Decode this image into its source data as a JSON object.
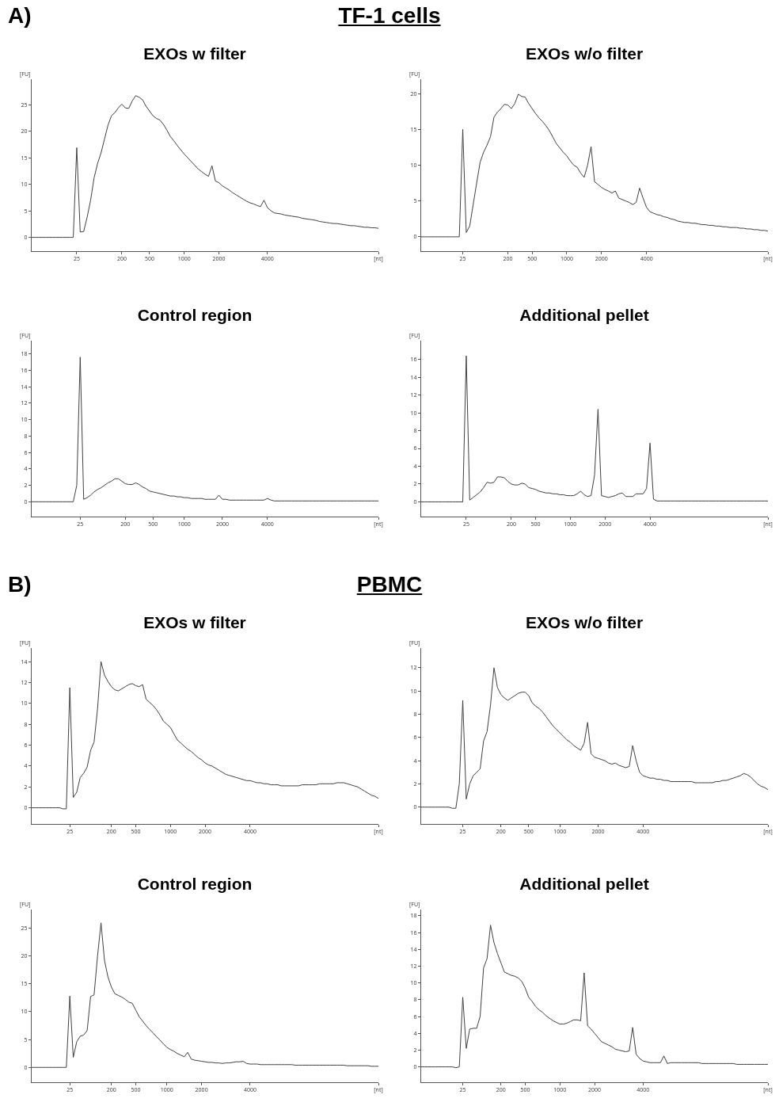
{
  "chart_data": [
    {
      "type": "line",
      "title": "EXOs w filter",
      "annotations": [
        "A)",
        "TF-1 cells"
      ],
      "ylabel": "[FU]",
      "grid": false,
      "marker": "none",
      "line_style": "solid",
      "ylim": [
        -2.6,
        29.8
      ],
      "yticks": [
        0,
        5,
        10,
        15,
        20,
        25
      ],
      "categories": [
        null,
        null,
        null,
        null,
        null,
        null,
        null,
        null,
        null,
        null,
        null,
        null,
        null,
        "25",
        null,
        null,
        null,
        null,
        null,
        null,
        null,
        null,
        null,
        null,
        null,
        null,
        "200",
        null,
        null,
        null,
        null,
        null,
        null,
        null,
        "500",
        null,
        null,
        null,
        null,
        null,
        null,
        null,
        null,
        null,
        "1000",
        null,
        null,
        null,
        null,
        null,
        null,
        null,
        null,
        null,
        "2000",
        null,
        null,
        null,
        null,
        null,
        null,
        null,
        null,
        null,
        null,
        null,
        null,
        null,
        "4000",
        null,
        null,
        null,
        null,
        null,
        null,
        null,
        null,
        null,
        null,
        null,
        null,
        null,
        null,
        null,
        null,
        null,
        null,
        null,
        null,
        null,
        null,
        null,
        null,
        null,
        null,
        null,
        null,
        null,
        null,
        null,
        "[nt]"
      ],
      "series": [
        {
          "color": "#404040",
          "values": [
            0,
            0,
            0,
            0,
            0,
            0,
            0,
            0,
            0,
            0,
            0,
            0,
            0,
            16.9,
            1.0,
            1.1,
            3.8,
            7,
            11.2,
            13.9,
            15.9,
            18.5,
            21.1,
            22.9,
            23.5,
            24.4,
            25.1,
            24.4,
            24.3,
            25.7,
            26.7,
            26.4,
            25.9,
            24.7,
            23.8,
            22.9,
            22.4,
            22.1,
            21.3,
            20.2,
            19,
            18.2,
            17.3,
            16.5,
            15.7,
            15,
            14.3,
            13.6,
            12.9,
            12.4,
            11.9,
            11.5,
            13.5,
            10.6,
            10.3,
            9.7,
            9.3,
            8.9,
            8.4,
            8.0,
            7.6,
            7.2,
            6.8,
            6.5,
            6.3,
            6.0,
            5.8,
            7.0,
            5.6,
            5.0,
            4.6,
            4.5,
            4.4,
            4.2,
            4.1,
            4.0,
            3.9,
            3.8,
            3.6,
            3.5,
            3.4,
            3.3,
            3.2,
            3.0,
            2.9,
            2.8,
            2.7,
            2.6,
            2.6,
            2.5,
            2.4,
            2.3,
            2.2,
            2.2,
            2.1,
            2.0,
            1.9,
            1.9,
            1.8,
            1.8,
            1.7
          ]
        }
      ]
    },
    {
      "type": "line",
      "title": "EXOs w/o filter",
      "ylabel": "[FU]",
      "grid": false,
      "marker": "none",
      "line_style": "solid",
      "ylim": [
        -2,
        22
      ],
      "yticks": [
        0,
        5,
        10,
        15,
        20
      ],
      "categories": [
        null,
        null,
        null,
        null,
        null,
        null,
        null,
        null,
        null,
        null,
        null,
        null,
        "25",
        null,
        null,
        null,
        null,
        null,
        null,
        null,
        null,
        null,
        null,
        null,
        null,
        "200",
        null,
        null,
        null,
        null,
        null,
        null,
        "500",
        null,
        null,
        null,
        null,
        null,
        null,
        null,
        null,
        null,
        "1000",
        null,
        null,
        null,
        null,
        null,
        null,
        null,
        null,
        null,
        "2000",
        null,
        null,
        null,
        null,
        null,
        null,
        null,
        null,
        null,
        null,
        null,
        null,
        "4000",
        null,
        null,
        null,
        null,
        null,
        null,
        null,
        null,
        null,
        null,
        null,
        null,
        null,
        null,
        null,
        null,
        null,
        null,
        null,
        null,
        null,
        null,
        null,
        null,
        null,
        null,
        null,
        null,
        null,
        null,
        null,
        null,
        null,
        null,
        "[nt]"
      ],
      "series": [
        {
          "color": "#404040",
          "values": [
            0,
            0,
            0,
            0,
            0,
            0,
            0,
            0,
            0,
            0,
            0,
            0,
            15,
            0.6,
            1.5,
            4.5,
            7.5,
            10.4,
            11.8,
            12.8,
            14,
            16.7,
            17.4,
            17.9,
            18.5,
            18.4,
            17.9,
            18.6,
            19.9,
            19.6,
            19.5,
            18.6,
            17.9,
            17.2,
            16.6,
            16.1,
            15.5,
            14.8,
            13.9,
            13,
            12.4,
            11.8,
            11.3,
            10.6,
            10,
            9.7,
            8.9,
            8.3,
            10,
            12.6,
            7.7,
            7.3,
            6.9,
            6.6,
            6.4,
            6.1,
            6.4,
            5.4,
            5.2,
            5.0,
            4.8,
            4.5,
            4.8,
            6.8,
            5.4,
            4.1,
            3.5,
            3.3,
            3.1,
            3.0,
            2.8,
            2.7,
            2.5,
            2.4,
            2.2,
            2.1,
            2.0,
            2.0,
            1.9,
            1.9,
            1.8,
            1.7,
            1.7,
            1.6,
            1.6,
            1.5,
            1.5,
            1.4,
            1.4,
            1.3,
            1.3,
            1.3,
            1.2,
            1.2,
            1.1,
            1.1,
            1.0,
            1.0,
            0.9,
            0.9,
            0.8
          ]
        }
      ]
    },
    {
      "type": "line",
      "title": "Control region",
      "ylabel": "[FU]",
      "grid": false,
      "marker": "none",
      "line_style": "solid",
      "ylim": [
        -1.8,
        19.6
      ],
      "yticks": [
        0,
        2,
        4,
        6,
        8,
        10,
        12,
        14,
        16,
        18
      ],
      "categories": [
        null,
        null,
        null,
        null,
        null,
        null,
        null,
        null,
        null,
        null,
        null,
        null,
        null,
        null,
        "25",
        null,
        null,
        null,
        null,
        null,
        null,
        null,
        null,
        null,
        null,
        null,
        null,
        "200",
        null,
        null,
        null,
        null,
        null,
        null,
        null,
        "500",
        null,
        null,
        null,
        null,
        null,
        null,
        null,
        null,
        "1000",
        null,
        null,
        null,
        null,
        null,
        null,
        null,
        null,
        null,
        null,
        "2000",
        null,
        null,
        null,
        null,
        null,
        null,
        null,
        null,
        null,
        null,
        null,
        null,
        "4000",
        null,
        null,
        null,
        null,
        null,
        null,
        null,
        null,
        null,
        null,
        null,
        null,
        null,
        null,
        null,
        null,
        null,
        null,
        null,
        null,
        null,
        null,
        null,
        null,
        null,
        null,
        null,
        null,
        null,
        null,
        null,
        "[nt]"
      ],
      "series": [
        {
          "color": "#404040",
          "values": [
            0,
            0,
            0,
            0,
            0,
            0,
            0,
            0,
            0,
            0,
            0,
            0,
            0,
            2,
            17.6,
            0.3,
            0.5,
            0.8,
            1.2,
            1.5,
            1.7,
            2.0,
            2.3,
            2.5,
            2.8,
            2.8,
            2.5,
            2.2,
            2.1,
            2.1,
            2.3,
            2.1,
            1.8,
            1.6,
            1.3,
            1.2,
            1.1,
            1.0,
            0.9,
            0.8,
            0.7,
            0.7,
            0.6,
            0.6,
            0.5,
            0.5,
            0.4,
            0.4,
            0.4,
            0.4,
            0.3,
            0.3,
            0.3,
            0.3,
            0.8,
            0.3,
            0.3,
            0.2,
            0.2,
            0.2,
            0.2,
            0.2,
            0.2,
            0.2,
            0.2,
            0.2,
            0.2,
            0.2,
            0.4,
            0.2,
            0.1,
            0.1,
            0.1,
            0.1,
            0.1,
            0.1,
            0.1,
            0.1,
            0.1,
            0.1,
            0.1,
            0.1,
            0.1,
            0.1,
            0.1,
            0.1,
            0.1,
            0.1,
            0.1,
            0.1,
            0.1,
            0.1,
            0.1,
            0.1,
            0.1,
            0.1,
            0.1,
            0.1,
            0.1,
            0.1,
            0.1
          ]
        }
      ]
    },
    {
      "type": "line",
      "title": "Additional pellet",
      "ylabel": "[FU]",
      "grid": false,
      "marker": "none",
      "line_style": "solid",
      "ylim": [
        -1.65,
        18.1
      ],
      "yticks": [
        0,
        2,
        4,
        6,
        8,
        10,
        12,
        14,
        16
      ],
      "categories": [
        null,
        null,
        null,
        null,
        null,
        null,
        null,
        null,
        null,
        null,
        null,
        null,
        null,
        "25",
        null,
        null,
        null,
        null,
        null,
        null,
        null,
        null,
        null,
        null,
        null,
        null,
        "200",
        null,
        null,
        null,
        null,
        null,
        null,
        "500",
        null,
        null,
        null,
        null,
        null,
        null,
        null,
        null,
        null,
        "1000",
        null,
        null,
        null,
        null,
        null,
        null,
        null,
        null,
        null,
        "2000",
        null,
        null,
        null,
        null,
        null,
        null,
        null,
        null,
        null,
        null,
        null,
        null,
        "4000",
        null,
        null,
        null,
        null,
        null,
        null,
        null,
        null,
        null,
        null,
        null,
        null,
        null,
        null,
        null,
        null,
        null,
        null,
        null,
        null,
        null,
        null,
        null,
        null,
        null,
        null,
        null,
        null,
        null,
        null,
        null,
        null,
        null,
        "[nt]"
      ],
      "series": [
        {
          "color": "#404040",
          "values": [
            0,
            0,
            0,
            0,
            0,
            0,
            0,
            0,
            0,
            0,
            0,
            0,
            0,
            16.4,
            0.2,
            0.5,
            0.8,
            1.1,
            1.6,
            2.2,
            2.1,
            2.2,
            2.8,
            2.8,
            2.7,
            2.3,
            2.0,
            1.9,
            1.9,
            2.1,
            2.0,
            1.6,
            1.5,
            1.4,
            1.2,
            1.1,
            1.0,
            1.0,
            0.9,
            0.9,
            0.8,
            0.8,
            0.7,
            0.7,
            0.7,
            0.9,
            1.2,
            0.8,
            0.6,
            0.7,
            3.0,
            10.4,
            0.7,
            0.6,
            0.5,
            0.6,
            0.7,
            0.9,
            1.0,
            0.6,
            0.6,
            0.6,
            0.9,
            0.9,
            0.9,
            1.5,
            6.6,
            0.3,
            0.1,
            0.1,
            0.1,
            0.1,
            0.1,
            0.1,
            0.1,
            0.1,
            0.1,
            0.1,
            0.1,
            0.1,
            0.1,
            0.1,
            0.1,
            0.1,
            0.1,
            0.1,
            0.1,
            0.1,
            0.1,
            0.1,
            0.1,
            0.1,
            0.1,
            0.1,
            0.1,
            0.1,
            0.1,
            0.1,
            0.1,
            0.1,
            0.1
          ]
        }
      ]
    },
    {
      "type": "line",
      "title": "EXOs w filter",
      "annotations": [
        "B)",
        "PBMC"
      ],
      "ylabel": "[FU]",
      "grid": false,
      "marker": "none",
      "line_style": "solid",
      "ylim": [
        -1.55,
        15.3
      ],
      "yticks": [
        0,
        2,
        4,
        6,
        8,
        10,
        12,
        14
      ],
      "categories": [
        null,
        null,
        null,
        null,
        null,
        null,
        null,
        null,
        null,
        null,
        null,
        "25",
        null,
        null,
        null,
        null,
        null,
        null,
        null,
        null,
        null,
        null,
        null,
        "200",
        null,
        null,
        null,
        null,
        null,
        null,
        "500",
        null,
        null,
        null,
        null,
        null,
        null,
        null,
        null,
        null,
        "1000",
        null,
        null,
        null,
        null,
        null,
        null,
        null,
        null,
        null,
        "2000",
        null,
        null,
        null,
        null,
        null,
        null,
        null,
        null,
        null,
        null,
        null,
        null,
        "4000",
        null,
        null,
        null,
        null,
        null,
        null,
        null,
        null,
        null,
        null,
        null,
        null,
        null,
        null,
        null,
        null,
        null,
        null,
        null,
        null,
        null,
        null,
        null,
        null,
        null,
        null,
        null,
        null,
        null,
        null,
        null,
        null,
        null,
        null,
        null,
        null,
        "[nt]"
      ],
      "series": [
        {
          "color": "#404040",
          "values": [
            0,
            0,
            0,
            0,
            0,
            0,
            0,
            0,
            0,
            -0.1,
            -0.1,
            11.5,
            1.0,
            1.5,
            2.9,
            3.3,
            3.9,
            5.5,
            6.3,
            9.5,
            14,
            12.7,
            12.1,
            11.6,
            11.3,
            11.2,
            11.4,
            11.6,
            11.8,
            11.9,
            11.7,
            11.6,
            11.8,
            10.4,
            10.1,
            9.8,
            9.4,
            8.9,
            8.3,
            8.0,
            7.7,
            7.1,
            6.5,
            6.2,
            5.9,
            5.6,
            5.4,
            5.1,
            4.8,
            4.6,
            4.3,
            4.1,
            4.0,
            3.8,
            3.6,
            3.4,
            3.2,
            3.1,
            3.0,
            2.9,
            2.8,
            2.7,
            2.6,
            2.6,
            2.5,
            2.4,
            2.4,
            2.3,
            2.3,
            2.2,
            2.2,
            2.2,
            2.1,
            2.1,
            2.1,
            2.1,
            2.1,
            2.1,
            2.2,
            2.2,
            2.2,
            2.2,
            2.2,
            2.3,
            2.3,
            2.3,
            2.3,
            2.3,
            2.4,
            2.4,
            2.4,
            2.3,
            2.2,
            2.1,
            2.0,
            1.8,
            1.6,
            1.4,
            1.2,
            1.1,
            0.9
          ]
        }
      ]
    },
    {
      "type": "line",
      "title": "EXOs w/o filter",
      "ylabel": "[FU]",
      "grid": false,
      "marker": "none",
      "line_style": "solid",
      "ylim": [
        -1.45,
        13.7
      ],
      "yticks": [
        0,
        2,
        4,
        6,
        8,
        10,
        12
      ],
      "categories": [
        null,
        null,
        null,
        null,
        null,
        null,
        null,
        null,
        null,
        null,
        null,
        null,
        "25",
        null,
        null,
        null,
        null,
        null,
        null,
        null,
        null,
        null,
        null,
        "200",
        null,
        null,
        null,
        null,
        null,
        null,
        null,
        "500",
        null,
        null,
        null,
        null,
        null,
        null,
        null,
        null,
        "1000",
        null,
        null,
        null,
        null,
        null,
        null,
        null,
        null,
        null,
        null,
        "2000",
        null,
        null,
        null,
        null,
        null,
        null,
        null,
        null,
        null,
        null,
        null,
        null,
        "4000",
        null,
        null,
        null,
        null,
        null,
        null,
        null,
        null,
        null,
        null,
        null,
        null,
        null,
        null,
        null,
        null,
        null,
        null,
        null,
        null,
        null,
        null,
        null,
        null,
        null,
        null,
        null,
        null,
        null,
        null,
        null,
        null,
        null,
        null,
        null,
        "[nt]"
      ],
      "series": [
        {
          "color": "#404040",
          "values": [
            0,
            0,
            0,
            0,
            0,
            0,
            0,
            0,
            0,
            -0.1,
            -0.1,
            2,
            9.2,
            0.7,
            2.0,
            2.7,
            3.0,
            3.3,
            5.7,
            6.5,
            8.8,
            12.0,
            10.3,
            9.7,
            9.4,
            9.2,
            9.4,
            9.6,
            9.8,
            9.9,
            9.9,
            9.6,
            9.0,
            8.7,
            8.5,
            8.2,
            7.8,
            7.4,
            7.0,
            6.7,
            6.4,
            6.1,
            5.8,
            5.6,
            5.3,
            5.1,
            4.9,
            5.5,
            7.3,
            4.6,
            4.3,
            4.2,
            4.1,
            4.0,
            3.8,
            3.7,
            3.8,
            3.6,
            3.5,
            3.4,
            3.5,
            5.3,
            4.0,
            3.0,
            2.7,
            2.6,
            2.5,
            2.5,
            2.4,
            2.4,
            2.3,
            2.3,
            2.2,
            2.2,
            2.2,
            2.2,
            2.2,
            2.2,
            2.2,
            2.1,
            2.1,
            2.1,
            2.1,
            2.1,
            2.1,
            2.2,
            2.2,
            2.3,
            2.3,
            2.4,
            2.5,
            2.6,
            2.7,
            2.9,
            2.8,
            2.6,
            2.3,
            2.0,
            1.8,
            1.7,
            1.5
          ]
        }
      ]
    },
    {
      "type": "line",
      "title": "Control region",
      "ylabel": "[FU]",
      "grid": false,
      "marker": "none",
      "line_style": "solid",
      "ylim": [
        -2.66,
        28.3
      ],
      "yticks": [
        0,
        5,
        10,
        15,
        20,
        25
      ],
      "categories": [
        null,
        null,
        null,
        null,
        null,
        null,
        null,
        null,
        null,
        null,
        null,
        "25",
        null,
        null,
        null,
        null,
        null,
        null,
        null,
        null,
        null,
        null,
        null,
        "200",
        null,
        null,
        null,
        null,
        null,
        null,
        "500",
        null,
        null,
        null,
        null,
        null,
        null,
        null,
        null,
        "1000",
        null,
        null,
        null,
        null,
        null,
        null,
        null,
        null,
        null,
        "2000",
        null,
        null,
        null,
        null,
        null,
        null,
        null,
        null,
        null,
        null,
        null,
        null,
        null,
        "4000",
        null,
        null,
        null,
        null,
        null,
        null,
        null,
        null,
        null,
        null,
        null,
        null,
        null,
        null,
        null,
        null,
        null,
        null,
        null,
        null,
        null,
        null,
        null,
        null,
        null,
        null,
        null,
        null,
        null,
        null,
        null,
        null,
        null,
        null,
        null,
        null,
        "[nt]"
      ],
      "series": [
        {
          "color": "#404040",
          "values": [
            0,
            0,
            0,
            0,
            0,
            0,
            0,
            0,
            0,
            0,
            0,
            12.8,
            1.8,
            4.6,
            5.6,
            5.8,
            6.6,
            12.7,
            13,
            20,
            25.9,
            19.2,
            16.2,
            14.4,
            13.2,
            12.9,
            12.6,
            12.2,
            11.7,
            11.5,
            10.3,
            9.1,
            8.3,
            7.5,
            6.8,
            6.2,
            5.5,
            4.9,
            4.2,
            3.6,
            3.2,
            2.9,
            2.5,
            2.2,
            1.9,
            2.7,
            1.5,
            1.3,
            1.2,
            1.1,
            1.0,
            0.9,
            0.9,
            0.8,
            0.8,
            0.7,
            0.8,
            0.8,
            0.9,
            1.0,
            1.0,
            1.1,
            0.7,
            0.6,
            0.6,
            0.6,
            0.5,
            0.5,
            0.5,
            0.5,
            0.5,
            0.5,
            0.5,
            0.5,
            0.5,
            0.5,
            0.4,
            0.4,
            0.4,
            0.4,
            0.4,
            0.4,
            0.4,
            0.4,
            0.4,
            0.4,
            0.4,
            0.4,
            0.4,
            0.4,
            0.4,
            0.3,
            0.3,
            0.3,
            0.3,
            0.3,
            0.3,
            0.3,
            0.2,
            0.2,
            0.2
          ]
        }
      ]
    },
    {
      "type": "line",
      "title": "Additional pellet",
      "ylabel": "[FU]",
      "grid": false,
      "marker": "none",
      "line_style": "solid",
      "ylim": [
        -1.83,
        18.75
      ],
      "yticks": [
        0,
        2,
        4,
        6,
        8,
        10,
        12,
        14,
        16,
        18
      ],
      "categories": [
        null,
        null,
        null,
        null,
        null,
        null,
        null,
        null,
        null,
        null,
        null,
        null,
        "25",
        null,
        null,
        null,
        null,
        null,
        null,
        null,
        null,
        null,
        null,
        "200",
        null,
        null,
        null,
        null,
        null,
        null,
        "500",
        null,
        null,
        null,
        null,
        null,
        null,
        null,
        null,
        null,
        "1000",
        null,
        null,
        null,
        null,
        null,
        null,
        null,
        null,
        null,
        "2000",
        null,
        null,
        null,
        null,
        null,
        null,
        null,
        null,
        null,
        null,
        null,
        null,
        null,
        "4000",
        null,
        null,
        null,
        null,
        null,
        null,
        null,
        null,
        null,
        null,
        null,
        null,
        null,
        null,
        null,
        null,
        null,
        null,
        null,
        null,
        null,
        null,
        null,
        null,
        null,
        null,
        null,
        null,
        null,
        null,
        null,
        null,
        null,
        null,
        null,
        "[nt]"
      ],
      "series": [
        {
          "color": "#404040",
          "values": [
            0,
            0,
            0,
            0,
            0,
            0,
            0,
            0,
            0,
            0,
            -0.1,
            0,
            8.3,
            2.2,
            4.5,
            4.6,
            4.6,
            6.0,
            11.8,
            12.9,
            16.9,
            14.8,
            13.5,
            12.4,
            11.3,
            11.1,
            10.9,
            10.8,
            10.6,
            10.2,
            9.4,
            8.3,
            7.8,
            7.2,
            6.8,
            6.5,
            6.1,
            5.8,
            5.5,
            5.3,
            5.1,
            5.1,
            5.2,
            5.4,
            5.6,
            5.6,
            5.5,
            11.2,
            4.9,
            4.5,
            4.0,
            3.5,
            3.0,
            2.8,
            2.6,
            2.4,
            2.1,
            2.0,
            1.9,
            1.8,
            1.9,
            4.7,
            1.5,
            1.0,
            0.7,
            0.6,
            0.5,
            0.5,
            0.5,
            0.5,
            1.3,
            0.4,
            0.5,
            0.5,
            0.5,
            0.5,
            0.5,
            0.5,
            0.5,
            0.5,
            0.5,
            0.4,
            0.4,
            0.4,
            0.4,
            0.4,
            0.4,
            0.4,
            0.4,
            0.4,
            0.4,
            0.3,
            0.3,
            0.3,
            0.3,
            0.3,
            0.3,
            0.3,
            0.3,
            0.3,
            0.3
          ]
        }
      ]
    }
  ]
}
